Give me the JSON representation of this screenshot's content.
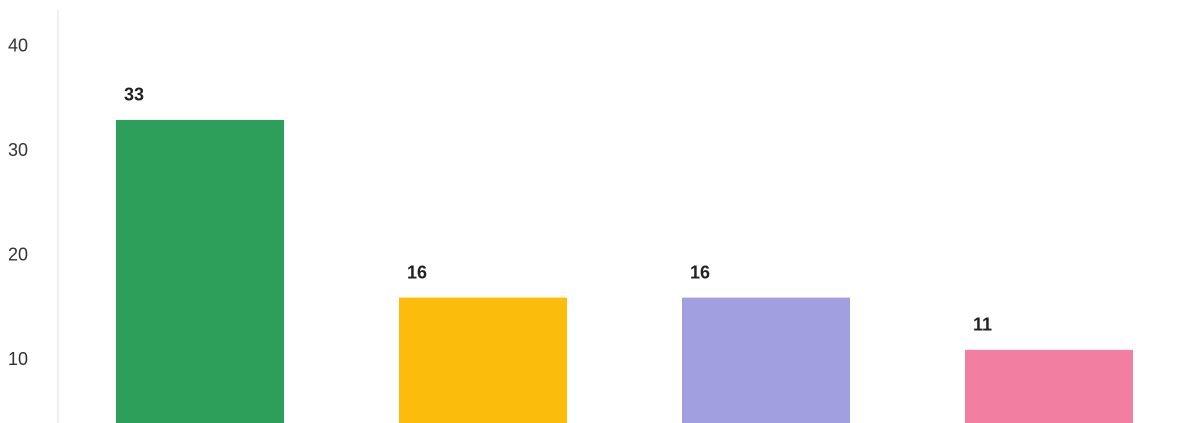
{
  "chart_data": {
    "type": "bar",
    "values": [
      33,
      16,
      16,
      11
    ],
    "colors": [
      "#2e9e5b",
      "#fbbc0c",
      "#a29fe0",
      "#f27fa1"
    ],
    "ylim": [
      4,
      44
    ],
    "yticks": [
      10,
      20,
      30,
      40
    ],
    "grid": false
  }
}
